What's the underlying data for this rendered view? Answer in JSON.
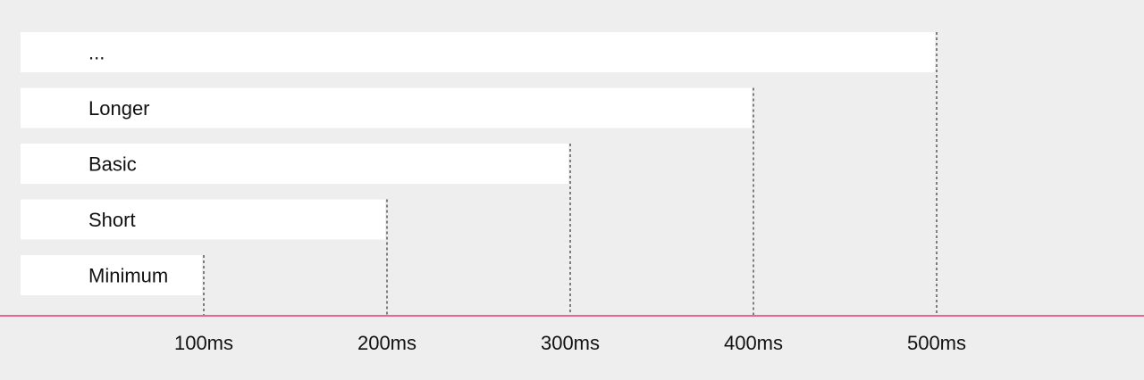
{
  "chart_data": {
    "type": "bar",
    "orientation": "horizontal",
    "categories": [
      "...",
      "Longer",
      "Basic",
      "Short",
      "Minimum"
    ],
    "values": [
      500,
      400,
      300,
      200,
      100
    ],
    "x_tick_values": [
      100,
      200,
      300,
      400,
      500
    ],
    "x_tick_labels": [
      "100ms",
      "200ms",
      "300ms",
      "400ms",
      "500ms"
    ],
    "xlim": [
      0,
      500
    ],
    "title": "",
    "xlabel": "",
    "ylabel": "",
    "grid": false,
    "legend": "none",
    "colors": {
      "background": "#eeeeee",
      "bar": "#ffffff",
      "axis": "#f06292",
      "guide": "#333333",
      "text": "#111111"
    }
  }
}
